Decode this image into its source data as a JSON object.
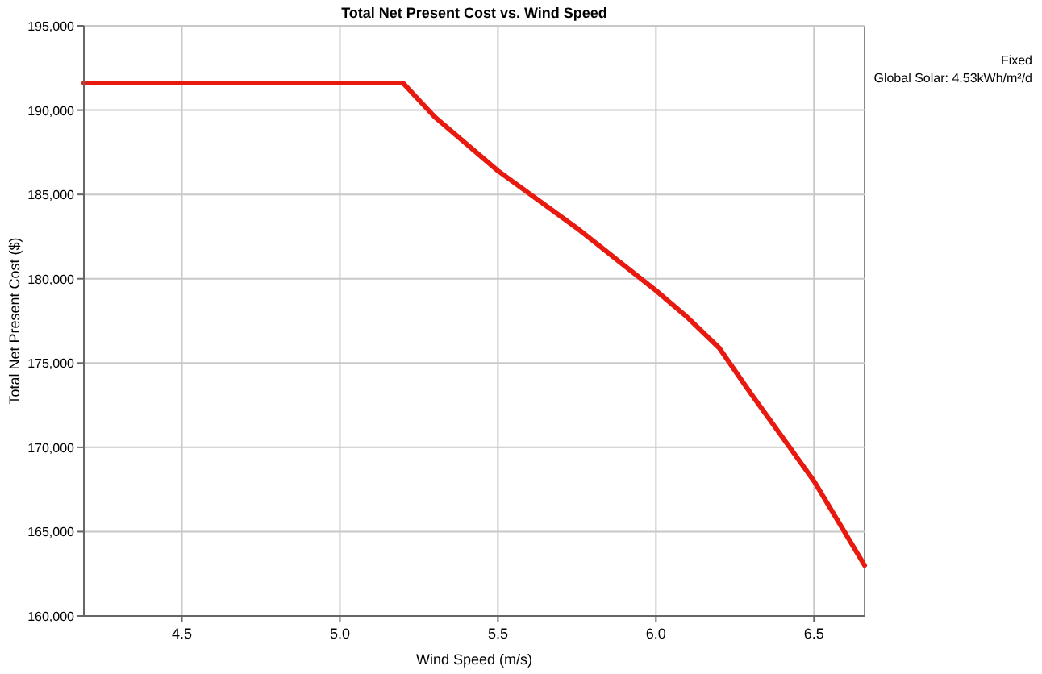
{
  "chart_data": {
    "type": "line",
    "title": "Total Net Present Cost vs. Wind Speed",
    "xlabel": "Wind Speed (m/s)",
    "ylabel": "Total Net Present Cost ($)",
    "x": [
      4.19,
      5.2,
      5.3,
      5.5,
      5.75,
      6.0,
      6.1,
      6.2,
      6.3,
      6.4,
      6.5,
      6.66
    ],
    "series": [
      {
        "color": "#e8190f",
        "values": [
          191600,
          191600,
          189600,
          186400,
          183000,
          179300,
          177700,
          175900,
          173200,
          170600,
          168000,
          163000
        ]
      }
    ],
    "xlim": [
      4.19,
      6.66
    ],
    "xticks": [
      4.5,
      {
        "value": 5,
        "label": "5.0"
      },
      5.5,
      {
        "value": 6,
        "label": "6.0"
      },
      6.5
    ],
    "ylim": [
      160000,
      195000
    ],
    "yticks": [
      {
        "value": 160000,
        "label": "160,000"
      },
      {
        "value": 165000,
        "label": "165,000"
      },
      {
        "value": 170000,
        "label": "170,000"
      },
      {
        "value": 175000,
        "label": "175,000"
      },
      {
        "value": 180000,
        "label": "180,000"
      },
      {
        "value": 185000,
        "label": "185,000"
      },
      {
        "value": 190000,
        "label": "190,000"
      },
      {
        "value": 195000,
        "label": "195,000"
      }
    ],
    "grid": true,
    "marker": "none",
    "line_style": "solid",
    "annotations": [
      "Fixed",
      "Global Solar: 4.53kWh/m²/d"
    ]
  }
}
